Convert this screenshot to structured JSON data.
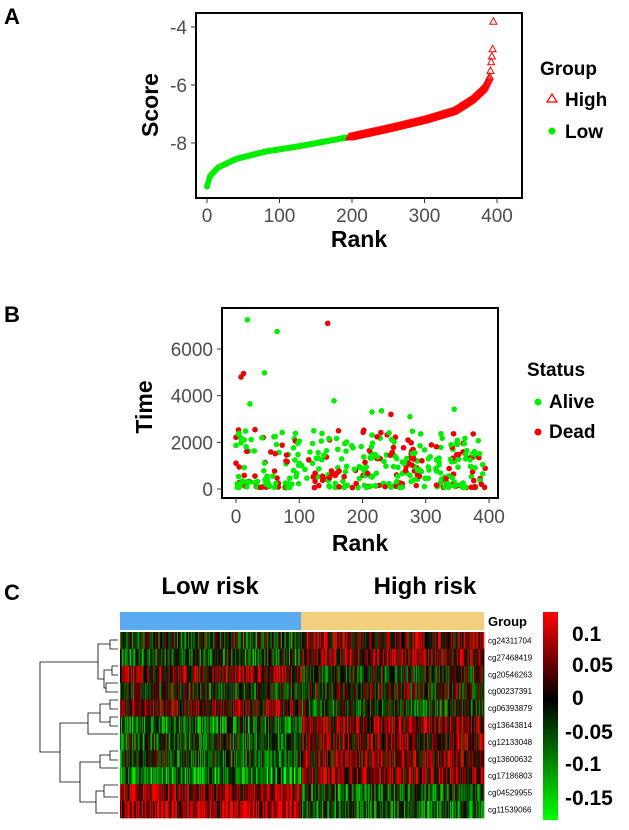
{
  "panels": [
    "A",
    "B",
    "C"
  ],
  "chart_data": [
    {
      "type": "scatter",
      "panel": "A",
      "xlabel": "Rank",
      "ylabel": "Score",
      "xlim": [
        -10,
        410
      ],
      "ylim": [
        -9.8,
        -3.6
      ],
      "xticks": [
        "0",
        "100",
        "200",
        "300",
        "400"
      ],
      "yticks": [
        "-4",
        "-6",
        "-8"
      ],
      "legend": {
        "title": "Group",
        "entries": [
          "High",
          "Low"
        ],
        "placement": "right"
      },
      "colors": {
        "High": "#ff0000",
        "Low": "#00ee00"
      },
      "n": 396,
      "low_high_split_rank": 196,
      "curve_anchors": [
        [
          0,
          -9.5
        ],
        [
          4,
          -9.15
        ],
        [
          15,
          -8.85
        ],
        [
          40,
          -8.55
        ],
        [
          80,
          -8.3
        ],
        [
          130,
          -8.1
        ],
        [
          195,
          -7.8
        ],
        [
          250,
          -7.5
        ],
        [
          300,
          -7.2
        ],
        [
          340,
          -6.9
        ],
        [
          365,
          -6.5
        ],
        [
          382,
          -6.1
        ],
        [
          388,
          -5.8
        ],
        [
          390,
          -5.7
        ],
        [
          391,
          -5.5
        ],
        [
          392,
          -5.2
        ],
        [
          393,
          -5.0
        ],
        [
          394,
          -4.75
        ],
        [
          395,
          -3.8
        ]
      ]
    },
    {
      "type": "scatter",
      "panel": "B",
      "xlabel": "Rank",
      "ylabel": "Time",
      "xlim": [
        -10,
        410
      ],
      "ylim": [
        -200,
        7600
      ],
      "xticks": [
        "0",
        "100",
        "200",
        "300",
        "400"
      ],
      "yticks": [
        "0",
        "2000",
        "4000",
        "6000"
      ],
      "legend": {
        "title": "Status",
        "entries": [
          "Alive",
          "Dead"
        ],
        "placement": "right"
      },
      "colors": {
        "Alive": "#00ee00",
        "Dead": "#ee0000"
      },
      "notable_points": [
        [
          8,
          4800,
          "Dead"
        ],
        [
          12,
          4950,
          "Dead"
        ],
        [
          18,
          7250,
          "Alive"
        ],
        [
          22,
          3650,
          "Alive"
        ],
        [
          45,
          4980,
          "Alive"
        ],
        [
          65,
          6750,
          "Alive"
        ],
        [
          145,
          7100,
          "Dead"
        ],
        [
          155,
          3780,
          "Alive"
        ],
        [
          215,
          3300,
          "Alive"
        ],
        [
          230,
          3350,
          "Alive"
        ],
        [
          245,
          3200,
          "Dead"
        ],
        [
          275,
          3100,
          "Alive"
        ],
        [
          345,
          3420,
          "Alive"
        ]
      ],
      "bulk_points": {
        "n": 384,
        "time_range": [
          0,
          2800
        ],
        "dead_fraction": 0.35
      }
    },
    {
      "type": "heatmap",
      "panel": "C",
      "column_groups": [
        "Low risk",
        "High risk"
      ],
      "group_label": "Group",
      "group_colors": {
        "Low risk": "#5aaaf0",
        "High risk": "#f2cf7f"
      },
      "rows": [
        "cg24311704",
        "cg27468419",
        "cg20546263",
        "cg00237391",
        "cg06393879",
        "cg13643814",
        "cg12133048",
        "cg13600632",
        "cg17186803",
        "cg04529955",
        "cg11539066"
      ],
      "row_bias_low": [
        -0.03,
        -0.05,
        0.05,
        -0.02,
        0.04,
        -0.06,
        -0.04,
        -0.04,
        -0.09,
        0.07,
        0.08
      ],
      "row_bias_high": [
        0.04,
        0.05,
        -0.02,
        0.0,
        -0.03,
        0.05,
        0.04,
        0.04,
        0.06,
        -0.05,
        -0.06
      ],
      "n_columns": 396,
      "colorbar": {
        "ticks": [
          "0.1",
          "0.05",
          "0",
          "-0.05",
          "-0.1",
          "-0.15"
        ],
        "range": [
          -0.18,
          0.13
        ],
        "colors": [
          "#00ff00",
          "#000000",
          "#ff0000"
        ]
      }
    }
  ]
}
